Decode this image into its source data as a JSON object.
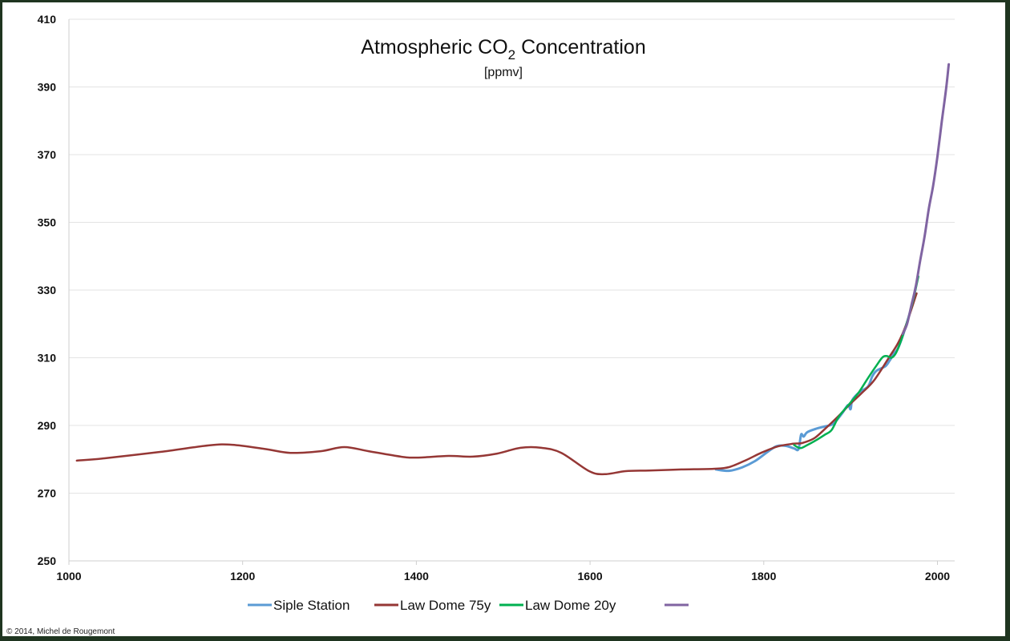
{
  "chart_data": {
    "type": "line",
    "title": "Atmospheric CO2 Concentration",
    "title_parts": {
      "prefix": "Atmospheric CO",
      "subscript": "2",
      "suffix": " Concentration"
    },
    "subtitle": "[ppmv]",
    "xlabel": "",
    "ylabel": "",
    "xlim": [
      1000,
      2021
    ],
    "ylim": [
      250,
      410
    ],
    "xticks": [
      1000,
      1200,
      1400,
      1600,
      1800,
      2000
    ],
    "yticks": [
      250,
      270,
      290,
      310,
      330,
      350,
      370,
      390,
      410
    ],
    "grid": "horizontal",
    "legend_position": "bottom",
    "series": [
      {
        "name": "Siple Station",
        "color": "#5b9bd5",
        "points": [
          [
            1745,
            277.0
          ],
          [
            1760,
            276.6
          ],
          [
            1775,
            277.6
          ],
          [
            1790,
            279.5
          ],
          [
            1805,
            282.3
          ],
          [
            1815,
            283.9
          ],
          [
            1825,
            284.0
          ],
          [
            1835,
            283.2
          ],
          [
            1840,
            283.0
          ],
          [
            1843,
            287.3
          ],
          [
            1846,
            286.7
          ],
          [
            1850,
            288.0
          ],
          [
            1860,
            289.0
          ],
          [
            1870,
            289.7
          ],
          [
            1880,
            290.5
          ],
          [
            1890,
            293.5
          ],
          [
            1897,
            296.0
          ],
          [
            1900,
            294.8
          ],
          [
            1902,
            297.5
          ],
          [
            1910,
            299.8
          ],
          [
            1920,
            301.5
          ],
          [
            1925,
            304.5
          ],
          [
            1930,
            306.2
          ],
          [
            1940,
            307.5
          ],
          [
            1945,
            309.2
          ],
          [
            1950,
            311.2
          ],
          [
            1955,
            313.0
          ],
          [
            1962,
            318.0
          ],
          [
            1970,
            325.0
          ],
          [
            1975,
            331.0
          ]
        ]
      },
      {
        "name": "Law Dome 75y",
        "color": "#953735",
        "points": [
          [
            1009,
            279.6
          ],
          [
            1041,
            280.3
          ],
          [
            1105,
            282.2
          ],
          [
            1161,
            284.1
          ],
          [
            1188,
            284.3
          ],
          [
            1225,
            283.1
          ],
          [
            1255,
            281.9
          ],
          [
            1290,
            282.4
          ],
          [
            1317,
            283.6
          ],
          [
            1345,
            282.4
          ],
          [
            1382,
            280.8
          ],
          [
            1401,
            280.5
          ],
          [
            1437,
            281.0
          ],
          [
            1465,
            280.8
          ],
          [
            1493,
            281.7
          ],
          [
            1520,
            283.4
          ],
          [
            1544,
            283.4
          ],
          [
            1567,
            281.9
          ],
          [
            1599,
            276.5
          ],
          [
            1617,
            275.6
          ],
          [
            1641,
            276.5
          ],
          [
            1668,
            276.7
          ],
          [
            1705,
            277.0
          ],
          [
            1742,
            277.2
          ],
          [
            1760,
            277.7
          ],
          [
            1780,
            279.8
          ],
          [
            1797,
            281.9
          ],
          [
            1816,
            283.8
          ],
          [
            1834,
            284.6
          ],
          [
            1844,
            284.8
          ],
          [
            1858,
            286.2
          ],
          [
            1871,
            289.1
          ],
          [
            1885,
            292.5
          ],
          [
            1899,
            296.2
          ],
          [
            1913,
            299.6
          ],
          [
            1927,
            303.3
          ],
          [
            1945,
            310.4
          ],
          [
            1955,
            314.5
          ],
          [
            1964,
            319.8
          ],
          [
            1976,
            329.0
          ]
        ]
      },
      {
        "name": "Law Dome 20y",
        "color": "#00b050",
        "points": [
          [
            1835,
            284.2
          ],
          [
            1842,
            283.3
          ],
          [
            1850,
            284.2
          ],
          [
            1860,
            285.6
          ],
          [
            1870,
            287.2
          ],
          [
            1878,
            288.6
          ],
          [
            1885,
            292.0
          ],
          [
            1890,
            293.8
          ],
          [
            1900,
            296.8
          ],
          [
            1910,
            300.0
          ],
          [
            1920,
            304.0
          ],
          [
            1930,
            307.8
          ],
          [
            1937,
            310.2
          ],
          [
            1942,
            310.5
          ],
          [
            1947,
            310.0
          ],
          [
            1952,
            311.3
          ],
          [
            1958,
            315.0
          ],
          [
            1965,
            320.5
          ],
          [
            1972,
            327.0
          ],
          [
            1978,
            334.0
          ]
        ]
      },
      {
        "name": "",
        "color": "#8064a2",
        "points": [
          [
            1960,
            317.0
          ],
          [
            1965,
            320.0
          ],
          [
            1970,
            325.5
          ],
          [
            1975,
            331.0
          ],
          [
            1980,
            338.5
          ],
          [
            1985,
            345.5
          ],
          [
            1990,
            354.0
          ],
          [
            1995,
            360.8
          ],
          [
            2000,
            369.5
          ],
          [
            2005,
            379.8
          ],
          [
            2010,
            389.5
          ],
          [
            2013,
            396.7
          ]
        ]
      }
    ]
  },
  "footer": {
    "copyright": "© 2014, Michel de Rougemont"
  }
}
